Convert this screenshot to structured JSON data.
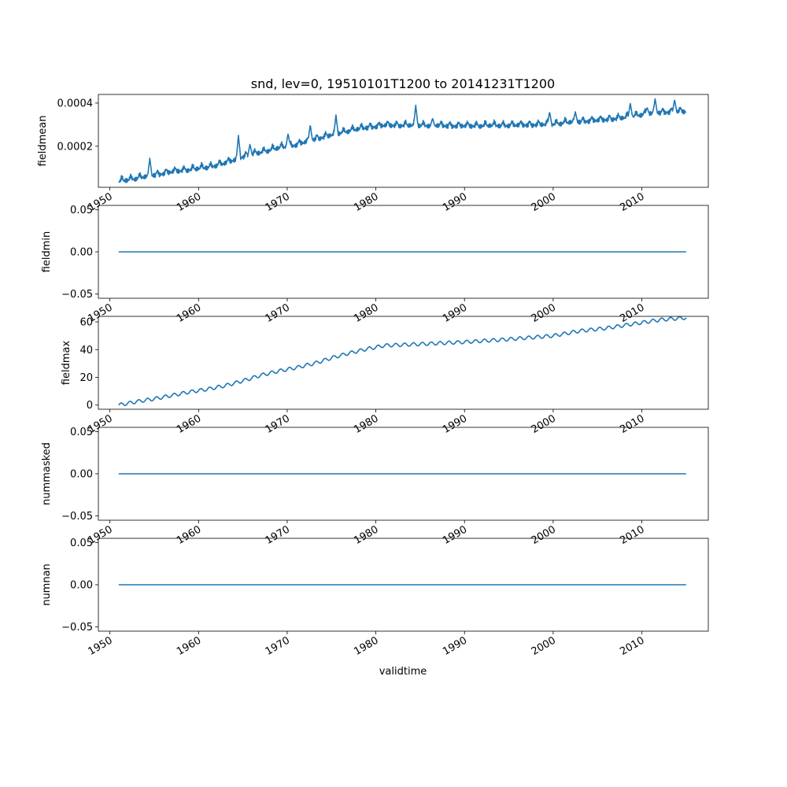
{
  "chart_data": {
    "title": "snd, lev=0, 19510101T1200 to 20141231T1200",
    "xlabel": "validtime",
    "x_tick_labels": [
      "1950",
      "1960",
      "1970",
      "1980",
      "1990",
      "2000",
      "2010"
    ],
    "x_range": [
      1948.7,
      2017.5
    ],
    "x_data_range": [
      1951.0,
      2015.0
    ],
    "line_color": "#1f77b4",
    "panels": [
      {
        "type": "line",
        "ylabel": "fieldmean",
        "ylim": [
          1e-05,
          0.00044
        ],
        "y_ticks": [
          0.0002,
          0.0004
        ],
        "y_tick_labels": [
          "0.0002",
          "0.0004"
        ],
        "trend": [
          [
            1951.0,
            3.5e-05
          ],
          [
            1953.0,
            5e-05
          ],
          [
            1955.0,
            6.5e-05
          ],
          [
            1957.0,
            8e-05
          ],
          [
            1959.0,
            9e-05
          ],
          [
            1961.0,
            0.0001
          ],
          [
            1963.0,
            0.00012
          ],
          [
            1965.0,
            0.00015
          ],
          [
            1967.0,
            0.00017
          ],
          [
            1969.0,
            0.00019
          ],
          [
            1971.0,
            0.000205
          ],
          [
            1973.0,
            0.00023
          ],
          [
            1975.0,
            0.00025
          ],
          [
            1977.0,
            0.00027
          ],
          [
            1979.0,
            0.000285
          ],
          [
            1981.0,
            0.000295
          ],
          [
            1985.0,
            0.000295
          ],
          [
            1990.0,
            0.000292
          ],
          [
            1995.0,
            0.000295
          ],
          [
            2000.0,
            0.0003
          ],
          [
            2002.0,
            0.00031
          ],
          [
            2005.0,
            0.000318
          ],
          [
            2008.0,
            0.00033
          ],
          [
            2010.0,
            0.000345
          ],
          [
            2012.0,
            0.000355
          ],
          [
            2015.0,
            0.00036
          ]
        ],
        "annual_peaks": [
          [
            1954.5,
            0.000145
          ],
          [
            1964.5,
            0.00025
          ],
          [
            1965.8,
            0.00021
          ],
          [
            1970.1,
            0.00026
          ],
          [
            1972.6,
            0.0003
          ],
          [
            1975.5,
            0.000345
          ],
          [
            1984.5,
            0.00039
          ],
          [
            1986.4,
            0.00033
          ],
          [
            1999.6,
            0.00036
          ],
          [
            2002.5,
            0.00036
          ],
          [
            2008.7,
            0.0004
          ],
          [
            2010.6,
            0.00038
          ],
          [
            2011.5,
            0.00042
          ],
          [
            2013.7,
            0.000415
          ]
        ]
      },
      {
        "type": "line",
        "ylabel": "fieldmin",
        "ylim": [
          -0.055,
          0.055
        ],
        "y_ticks": [
          -0.05,
          0.0,
          0.05
        ],
        "y_tick_labels": [
          "−0.05",
          "0.00",
          "0.05"
        ],
        "constant": 0.0
      },
      {
        "type": "line",
        "ylabel": "fieldmax",
        "ylim": [
          -3,
          64
        ],
        "y_ticks": [
          0,
          20,
          40,
          60
        ],
        "y_tick_labels": [
          "0",
          "20",
          "40",
          "60"
        ],
        "trend": [
          [
            1951.0,
            0.0
          ],
          [
            1953.0,
            2.5
          ],
          [
            1955.0,
            4.5
          ],
          [
            1957.0,
            7.0
          ],
          [
            1959.0,
            9.5
          ],
          [
            1961.0,
            11.5
          ],
          [
            1963.0,
            14.0
          ],
          [
            1965.0,
            17.5
          ],
          [
            1967.0,
            21.5
          ],
          [
            1969.0,
            24.5
          ],
          [
            1971.0,
            27.0
          ],
          [
            1973.0,
            30.0
          ],
          [
            1975.0,
            34.0
          ],
          [
            1977.0,
            37.5
          ],
          [
            1979.0,
            40.5
          ],
          [
            1981.0,
            43.0
          ],
          [
            1985.0,
            44.0
          ],
          [
            1990.0,
            45.5
          ],
          [
            1995.0,
            47.5
          ],
          [
            2000.0,
            50.0
          ],
          [
            2003.0,
            53.5
          ],
          [
            2006.0,
            55.5
          ],
          [
            2009.0,
            58.5
          ],
          [
            2012.0,
            61.5
          ],
          [
            2015.0,
            63.0
          ]
        ],
        "seasonal_amplitude": 1.2
      },
      {
        "type": "line",
        "ylabel": "nummasked",
        "ylim": [
          -0.055,
          0.055
        ],
        "y_ticks": [
          -0.05,
          0.0,
          0.05
        ],
        "y_tick_labels": [
          "−0.05",
          "0.00",
          "0.05"
        ],
        "constant": 0.0
      },
      {
        "type": "line",
        "ylabel": "numnan",
        "ylim": [
          -0.055,
          0.055
        ],
        "y_ticks": [
          -0.05,
          0.0,
          0.05
        ],
        "y_tick_labels": [
          "−0.05",
          "0.00",
          "0.05"
        ],
        "constant": 0.0
      }
    ]
  }
}
